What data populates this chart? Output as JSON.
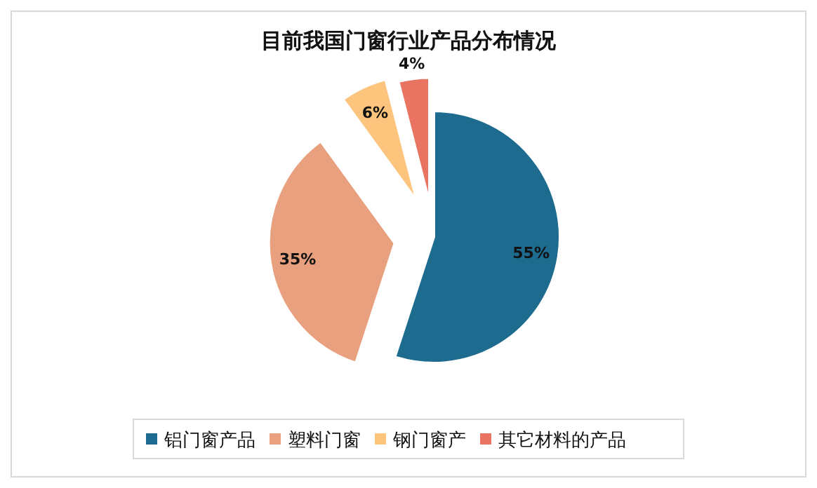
{
  "chart_data": {
    "type": "pie",
    "title": "目前我国门窗行业产品分布情况",
    "categories": [
      "铝门窗产品",
      "塑料门窗",
      "钢门窗产",
      "其它材料的产品"
    ],
    "values": [
      55,
      35,
      6,
      4
    ],
    "colors": [
      "#1d6b8f",
      "#e8a07e",
      "#fcc47c",
      "#e97462"
    ],
    "value_labels": [
      "55%",
      "35%",
      "6%",
      "4%"
    ],
    "legend": "bottom"
  }
}
